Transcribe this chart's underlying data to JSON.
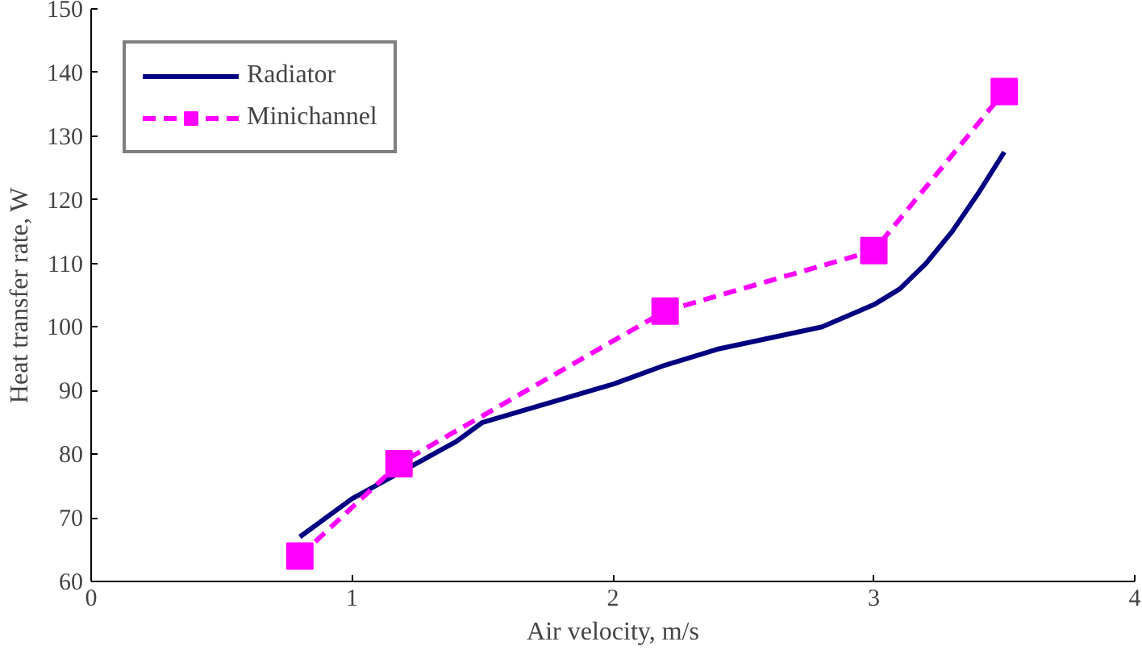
{
  "chart_data": {
    "type": "line",
    "xlabel": "Air velocity, m/s",
    "ylabel": "Heat transfer rate, W",
    "xlim": [
      0,
      4
    ],
    "xticks": [
      0,
      1,
      2,
      3,
      4
    ],
    "ylim": [
      60,
      150
    ],
    "yticks": [
      60,
      70,
      80,
      90,
      100,
      110,
      120,
      130,
      140,
      150
    ],
    "grid": false,
    "legend": "top left",
    "series": [
      {
        "name": "Radiator",
        "color": "#000080",
        "marker": "none",
        "line_style": "solid",
        "x": [
          0.8,
          1.0,
          1.4,
          1.5,
          2.0,
          2.2,
          2.4,
          2.8,
          3.0,
          3.1,
          3.2,
          3.3,
          3.4,
          3.5
        ],
        "values": [
          67,
          73,
          82,
          85,
          91,
          94,
          96.5,
          100,
          103.5,
          106,
          110,
          115,
          121,
          127.5
        ]
      },
      {
        "name": "Minichannel",
        "color": "#ff00ff",
        "marker": "square",
        "line_style": "dashed",
        "x": [
          0.8,
          1.18,
          2.2,
          3.0,
          3.5
        ],
        "values": [
          64,
          78.5,
          102.5,
          112,
          137
        ]
      }
    ]
  }
}
